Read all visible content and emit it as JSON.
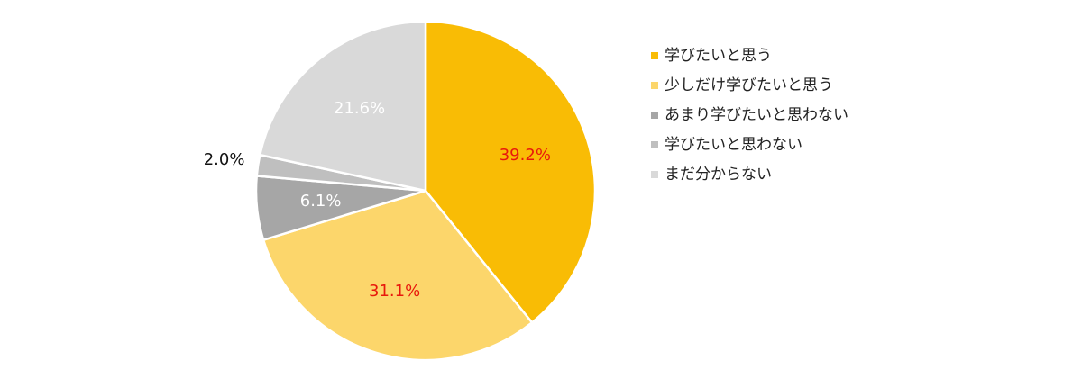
{
  "chart_data": {
    "type": "pie",
    "categories": [
      "学びたいと思う",
      "少しだけ学びたいと思う",
      "あまり学びたいと思わない",
      "学びたいと思わない",
      "まだ分からない"
    ],
    "values": [
      39.2,
      31.1,
      6.1,
      2.0,
      21.6
    ],
    "value_labels": [
      "39.2%",
      "31.1%",
      "6.1%",
      "2.0%",
      "21.6%"
    ],
    "colors": [
      "#f9bc05",
      "#fcd66b",
      "#a6a6a6",
      "#bfbfbf",
      "#d9d9d9"
    ],
    "label_colors": [
      "#e8180c",
      "#e8180c",
      "#ffffff",
      "#111111",
      "#ffffff"
    ],
    "legend": "right"
  }
}
